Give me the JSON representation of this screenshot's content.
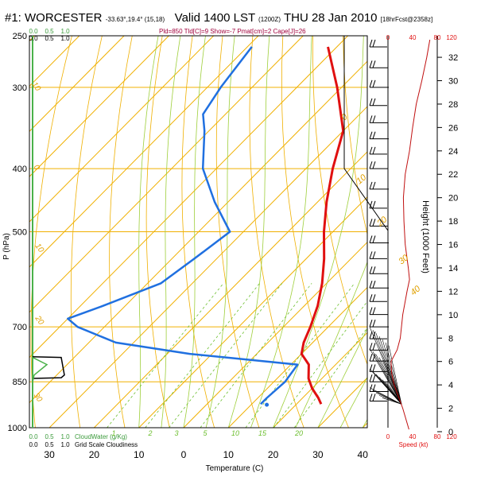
{
  "title": {
    "station": "#1: WORCESTER",
    "coords": "-33.63°,19.4° (15,18)",
    "valid": "Valid 1400 LST",
    "utc": "(1200Z)",
    "date": "THU 28 Jan 2010",
    "forecast": "[18hrFcst@2358z]"
  },
  "subtitle": "Pld=850 Tld[C]=9 Show=-7 Pmat[cm]=2 Cape[J]=26",
  "chart_data": {
    "type": "skew-t",
    "xlabel": "Temperature (C)",
    "ylabel": "P (hPa)",
    "right_ylabel": "Height (1000 Feet)",
    "xlim": [
      -30,
      50
    ],
    "ylim": [
      250,
      1000
    ],
    "pressure_ticks": [
      250,
      300,
      400,
      500,
      700,
      850,
      1000
    ],
    "pressure_tick_labels": [
      "250",
      "300",
      "400",
      "500",
      "700",
      "850",
      "1000"
    ],
    "temp_ticks": [
      -30,
      -20,
      -10,
      0,
      10,
      20,
      30,
      40
    ],
    "temp_tick_labels": [
      "30",
      "20",
      "10",
      "0",
      "10",
      "20",
      "30",
      "40"
    ],
    "height_ticks": [
      0,
      2,
      4,
      6,
      8,
      10,
      12,
      14,
      16,
      18,
      20,
      22,
      24,
      26,
      28,
      30,
      32
    ],
    "speed_axis_label": "Speed (kt)",
    "speed_ticks": [
      0,
      40,
      80,
      120
    ],
    "cloudwater_label": "CloudWater (g/Kg)",
    "cloudwater_ticks": [
      "0.0",
      "0.5",
      "1.0"
    ],
    "cloudiness_label": "Grid Scale Cloudiness",
    "cloudiness_ticks": [
      "0.0",
      "0.5",
      "1.0"
    ],
    "dry_adiabat_labels": [
      "10",
      "0",
      "10",
      "20",
      "30"
    ],
    "mixing_ratio_labels": [
      "1",
      "2",
      "3",
      "5",
      "10",
      "15",
      "20"
    ],
    "isotherm_labels": [
      "0",
      "10",
      "20",
      "30",
      "40"
    ],
    "temperature": [
      {
        "p": 260,
        "t": -52
      },
      {
        "p": 300,
        "t": -41
      },
      {
        "p": 350,
        "t": -30
      },
      {
        "p": 400,
        "t": -24
      },
      {
        "p": 450,
        "t": -18
      },
      {
        "p": 500,
        "t": -12
      },
      {
        "p": 550,
        "t": -6
      },
      {
        "p": 600,
        "t": -1
      },
      {
        "p": 650,
        "t": 3
      },
      {
        "p": 700,
        "t": 6
      },
      {
        "p": 740,
        "t": 8
      },
      {
        "p": 770,
        "t": 10
      },
      {
        "p": 800,
        "t": 14
      },
      {
        "p": 840,
        "t": 17
      },
      {
        "p": 870,
        "t": 20
      },
      {
        "p": 900,
        "t": 23.5
      },
      {
        "p": 920,
        "t": 25.5
      }
    ],
    "dewpoint": [
      {
        "p": 260,
        "t": -69
      },
      {
        "p": 300,
        "t": -67
      },
      {
        "p": 330,
        "t": -65
      },
      {
        "p": 350,
        "t": -61
      },
      {
        "p": 400,
        "t": -53
      },
      {
        "p": 450,
        "t": -43
      },
      {
        "p": 500,
        "t": -33
      },
      {
        "p": 550,
        "t": -35
      },
      {
        "p": 600,
        "t": -37
      },
      {
        "p": 650,
        "t": -45
      },
      {
        "p": 680,
        "t": -50
      },
      {
        "p": 700,
        "t": -46
      },
      {
        "p": 740,
        "t": -34
      },
      {
        "p": 770,
        "t": -15
      },
      {
        "p": 800,
        "t": 11.5
      },
      {
        "p": 850,
        "t": 12.5
      },
      {
        "p": 900,
        "t": 12
      },
      {
        "p": 920,
        "t": 12
      }
    ],
    "surface_dewpoint_marker": {
      "p": 922,
      "t": 13.5
    },
    "wind_speed": [
      {
        "h": 0.2,
        "s": 34
      },
      {
        "h": 2,
        "s": 24
      },
      {
        "h": 4,
        "s": 10
      },
      {
        "h": 5,
        "s": 6
      },
      {
        "h": 6,
        "s": 5
      },
      {
        "h": 7,
        "s": 15
      },
      {
        "h": 8,
        "s": 20
      },
      {
        "h": 10,
        "s": 24
      },
      {
        "h": 12,
        "s": 31
      },
      {
        "h": 13,
        "s": 35
      },
      {
        "h": 14,
        "s": 33
      },
      {
        "h": 16,
        "s": 28
      },
      {
        "h": 18,
        "s": 26
      },
      {
        "h": 20,
        "s": 25
      },
      {
        "h": 22,
        "s": 28
      },
      {
        "h": 24,
        "s": 35
      },
      {
        "h": 26,
        "s": 40
      },
      {
        "h": 28,
        "s": 46
      },
      {
        "h": 30,
        "s": 55
      },
      {
        "h": 32,
        "s": 63
      },
      {
        "h": 33.5,
        "s": 68
      }
    ],
    "barb_pressures": [
      260,
      280,
      300,
      320,
      340,
      360,
      380,
      400,
      430,
      460,
      490,
      520,
      550,
      580,
      610,
      640,
      670,
      700,
      730,
      760,
      790,
      820,
      850,
      880,
      910
    ],
    "cloudiness_profile": [
      {
        "p": 778,
        "c": 0.0
      },
      {
        "p": 780,
        "c": 0.9
      },
      {
        "p": 830,
        "c": 1.0
      },
      {
        "p": 838,
        "c": 0.9
      },
      {
        "p": 840,
        "c": 0.0
      }
    ],
    "cloudwater_profile": [
      {
        "p": 780,
        "w": 0.0
      },
      {
        "p": 800,
        "w": 0.45
      },
      {
        "p": 830,
        "w": 0.05
      },
      {
        "p": 850,
        "w": 0.0
      }
    ]
  }
}
